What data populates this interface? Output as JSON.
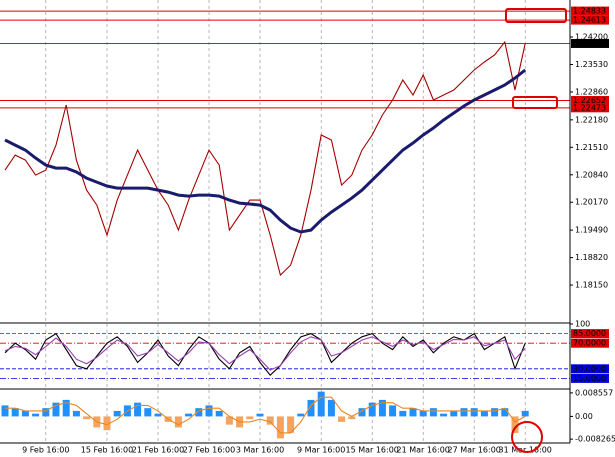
{
  "chart_data": [
    {
      "type": "line",
      "categories": [
        null,
        null,
        null,
        null,
        "9 Feb 16:00",
        null,
        null,
        null,
        null,
        null,
        "15 Feb 16:00",
        null,
        null,
        null,
        null,
        "21 Feb 16:00",
        null,
        null,
        null,
        null,
        "27 Feb 16:00",
        null,
        null,
        null,
        null,
        "3 Mar 16:00",
        null,
        null,
        null,
        null,
        null,
        "9 Mar 16:00",
        null,
        null,
        null,
        null,
        "15 Mar 16:00",
        null,
        null,
        null,
        null,
        "21 Mar 16:00",
        null,
        null,
        null,
        null,
        "27 Mar 16:00",
        null,
        null,
        null,
        null,
        "31 Mar 16:00"
      ],
      "series": [
        {
          "color": "#a40000",
          "values": [
            1.20955,
            1.21321,
            1.21199,
            1.20833,
            1.20955,
            1.21565,
            1.22541,
            1.21199,
            1.20467,
            1.20101,
            1.19369,
            1.20223,
            1.20833,
            1.21443,
            1.20955,
            1.20467,
            1.20101,
            1.19491,
            1.20223,
            1.20833,
            1.21443,
            1.21077,
            1.19491,
            1.19857,
            1.20223,
            1.20223,
            1.19369,
            1.18393,
            1.18637,
            1.19369,
            1.20467,
            1.21809,
            1.21687,
            1.20589,
            1.20833,
            1.21443,
            1.21809,
            1.22297,
            1.22663,
            1.23151,
            1.22785,
            1.23273,
            1.22663,
            1.22785,
            1.22907,
            1.23151,
            1.23395,
            1.2359,
            1.23761,
            1.24078,
            1.22907,
            1.24043
          ]
        },
        {
          "color": "#1a1a6e",
          "values": [
            1.21687,
            1.21565,
            1.21443,
            1.21248,
            1.21077,
            1.21004,
            1.21004,
            1.20907,
            1.2076,
            1.20662,
            1.20565,
            1.20516,
            1.20516,
            1.20516,
            1.20516,
            1.20467,
            1.20418,
            1.20345,
            1.20321,
            1.20345,
            1.20345,
            1.20321,
            1.20223,
            1.2015,
            1.20127,
            1.20101,
            1.19979,
            1.19735,
            1.1954,
            1.19443,
            1.19491,
            1.19735,
            1.1993,
            1.20101,
            1.20272,
            1.20467,
            1.20711,
            1.20955,
            1.21199,
            1.21443,
            1.21614,
            1.21809,
            1.2198,
            1.22175,
            1.22346,
            1.22517,
            1.22663,
            1.22785,
            1.22907,
            1.23029,
            1.232,
            1.23395
          ]
        }
      ],
      "ylim": [
        1.17249,
        1.25103
      ],
      "yticks": [
        {
          "value": 1.242,
          "label": "1.24200"
        },
        {
          "value": 1.2353,
          "label": "1.23530"
        },
        {
          "value": 1.2286,
          "label": "1.22860"
        },
        {
          "value": 1.2218,
          "label": "1.22180"
        },
        {
          "value": 1.2151,
          "label": "1.21510"
        },
        {
          "value": 1.2084,
          "label": "1.20840"
        },
        {
          "value": 1.2017,
          "label": "1.20170"
        },
        {
          "value": 1.1949,
          "label": "1.19490"
        },
        {
          "value": 1.1882,
          "label": "1.18820"
        },
        {
          "value": 1.1815,
          "label": "1.18150"
        }
      ],
      "levels": [
        {
          "value": 1.24833,
          "color": "#e00000"
        },
        {
          "value": 1.24613,
          "color": "#e00000"
        },
        {
          "value": 1.24043,
          "color": "#4a4a8a"
        },
        {
          "value": 1.22652,
          "color": "#e00000"
        },
        {
          "value": 1.22473,
          "color": "#e00000"
        }
      ]
    },
    {
      "type": "line",
      "series": [
        {
          "color": "#000000",
          "values": [
            55,
            70,
            60,
            45,
            75,
            85,
            60,
            35,
            30,
            50,
            70,
            80,
            65,
            40,
            55,
            75,
            50,
            35,
            60,
            80,
            70,
            45,
            30,
            55,
            65,
            40,
            20,
            35,
            60,
            80,
            85,
            75,
            40,
            55,
            70,
            80,
            85,
            70,
            60,
            80,
            65,
            75,
            55,
            70,
            80,
            75,
            85,
            60,
            70,
            80,
            30,
            70
          ]
        },
        {
          "color": "#9b3fb5",
          "values": [
            58,
            65,
            62,
            52,
            65,
            78,
            65,
            45,
            38,
            48,
            62,
            75,
            68,
            50,
            55,
            68,
            55,
            42,
            55,
            72,
            70,
            52,
            38,
            50,
            60,
            45,
            28,
            35,
            55,
            72,
            80,
            75,
            50,
            55,
            65,
            75,
            80,
            72,
            65,
            75,
            68,
            72,
            60,
            68,
            76,
            75,
            80,
            66,
            70,
            75,
            45,
            62
          ]
        }
      ],
      "ylim": [
        0,
        100
      ],
      "yticks": [
        100
      ],
      "levels": [
        {
          "value": 85,
          "label": "85.0000",
          "color": "#e00000"
        },
        {
          "value": 70,
          "label": "70.0000",
          "color": "#e00000"
        },
        {
          "value": 30,
          "label": "30.0000",
          "color": "#0000e0"
        },
        {
          "value": 15,
          "label": "15.0000",
          "color": "#0000e0"
        }
      ]
    },
    {
      "type": "bar",
      "series": [
        {
          "style": "histogram",
          "color": "#1e90ff",
          "negative_color": "#f4a460",
          "values": [
            0.004,
            0.003,
            0.002,
            0.001,
            0.003,
            0.005,
            0.006,
            0.002,
            -0.001,
            -0.004,
            -0.005,
            0.002,
            0.004,
            0.005,
            0.003,
            0.001,
            -0.002,
            -0.004,
            0.001,
            0.003,
            0.004,
            0.002,
            -0.003,
            -0.004,
            -0.001,
            0.001,
            -0.003,
            -0.008,
            -0.006,
            0.001,
            0.006,
            0.009,
            0.006,
            -0.002,
            -0.001,
            0.003,
            0.005,
            0.006,
            0.004,
            0.002,
            0.003,
            0.002,
            0.003,
            0.001,
            0.002,
            0.003,
            0.003,
            0.002,
            0.003,
            0.003,
            -0.006,
            0.002
          ]
        },
        {
          "style": "line",
          "color": "#e8871e",
          "values": [
            0.003,
            0.003,
            0.002,
            0.002,
            0.002,
            0.004,
            0.005,
            0.004,
            0.001,
            -0.002,
            -0.003,
            -0.001,
            0.002,
            0.004,
            0.004,
            0.002,
            -0.001,
            -0.003,
            -0.001,
            0.002,
            0.003,
            0.003,
            0,
            -0.002,
            -0.002,
            -0.001,
            -0.002,
            -0.006,
            -0.006,
            -0.002,
            0.004,
            0.007,
            0.007,
            0.002,
            0,
            0.002,
            0.004,
            0.005,
            0.005,
            0.003,
            0.003,
            0.002,
            0.002,
            0.002,
            0.002,
            0.002,
            0.002,
            0.002,
            0.002,
            0.003,
            -0.002,
            0
          ]
        }
      ],
      "ylim": [
        -0.0093,
        0.0096
      ],
      "yticks": [
        0.008557,
        {
          "value": 0,
          "label": "0.00"
        },
        -0.008265
      ]
    }
  ]
}
